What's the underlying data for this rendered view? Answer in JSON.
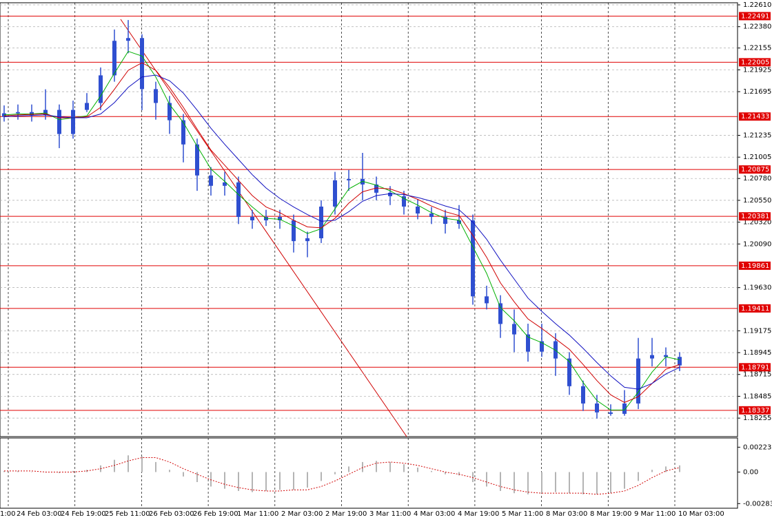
{
  "chart_data": {
    "type": "candlestick",
    "color": "#2f4fd0",
    "open": [
      1.2143,
      1.21467,
      1.2148,
      1.21445,
      1.21503,
      1.21249,
      1.21503,
      1.21576,
      1.21867,
      1.22231,
      1.2226,
      1.21722,
      1.21576,
      1.21394,
      1.21139,
      1.20812,
      1.20703,
      1.20739,
      1.20375,
      1.20339,
      1.20375,
      1.20339,
      1.2012,
      1.2015,
      1.20484,
      1.20761,
      1.20775,
      1.20717,
      1.2063,
      1.20593,
      1.20484,
      1.20411,
      1.20375,
      1.20302,
      1.20339,
      1.19538,
      1.19465,
      1.19247,
      1.19137,
      1.18955,
      1.19065,
      1.18883,
      1.18591,
      1.18409,
      1.18315,
      1.183,
      1.18409,
      1.18883,
      1.18919,
      1.189
    ],
    "high": [
      1.2155,
      1.2156,
      1.2156,
      1.2172,
      1.2156,
      1.216,
      1.2168,
      1.2195,
      1.2235,
      1.2245,
      1.223,
      1.218,
      1.2165,
      1.2146,
      1.212,
      1.209,
      1.2085,
      1.208,
      1.2045,
      1.2045,
      1.2045,
      1.204,
      1.2022,
      1.2055,
      1.2085,
      1.2087,
      1.2105,
      1.208,
      1.207,
      1.2065,
      1.2056,
      1.2048,
      1.2045,
      1.205,
      1.204,
      1.1965,
      1.1955,
      1.194,
      1.1925,
      1.1925,
      1.1915,
      1.1895,
      1.1865,
      1.185,
      1.184,
      1.1855,
      1.191,
      1.191,
      1.19,
      1.1895
    ],
    "low": [
      1.2138,
      1.214,
      1.2138,
      1.214,
      1.211,
      1.212,
      1.2148,
      1.215,
      1.218,
      1.221,
      1.215,
      1.214,
      1.2125,
      1.2095,
      1.2065,
      1.206,
      1.206,
      1.203,
      1.2025,
      1.2028,
      1.2025,
      1.2,
      1.1995,
      1.201,
      1.204,
      1.2065,
      1.2055,
      1.2055,
      1.205,
      1.204,
      1.2035,
      1.203,
      1.202,
      1.2025,
      1.1945,
      1.194,
      1.191,
      1.1895,
      1.1885,
      1.189,
      1.187,
      1.185,
      1.1833,
      1.1825,
      1.1828,
      1.1828,
      1.1835,
      1.188,
      1.188,
      1.1875
    ],
    "close": [
      1.21467,
      1.2148,
      1.21445,
      1.21503,
      1.21249,
      1.21503,
      1.21576,
      1.21867,
      1.22231,
      1.2226,
      1.21722,
      1.21576,
      1.21394,
      1.21139,
      1.20812,
      1.20703,
      1.20739,
      1.20375,
      1.20339,
      1.20375,
      1.20339,
      1.2012,
      1.2015,
      1.20484,
      1.20761,
      1.20775,
      1.20717,
      1.2063,
      1.20593,
      1.20484,
      1.20411,
      1.20375,
      1.20302,
      1.20339,
      1.19538,
      1.19465,
      1.19247,
      1.19137,
      1.18955,
      1.19065,
      1.18883,
      1.18591,
      1.18409,
      1.18315,
      1.183,
      1.18409,
      1.18883,
      1.18919,
      1.189,
      1.1881
    ],
    "moving_averages": [
      {
        "color": "#00b000",
        "values": [
          1.2145,
          1.2146,
          1.2146,
          1.2147,
          1.214,
          1.2142,
          1.2144,
          1.2165,
          1.2189,
          1.2212,
          1.2207,
          1.2185,
          1.2156,
          1.2137,
          1.2112,
          1.2088,
          1.2075,
          1.2061,
          1.2048,
          1.2036,
          1.2035,
          1.2028,
          1.202,
          1.2025,
          1.2046,
          1.2067,
          1.2075,
          1.2071,
          1.2065,
          1.2057,
          1.205,
          1.2042,
          1.2036,
          1.2034,
          1.2006,
          1.1978,
          1.1942,
          1.1928,
          1.1911,
          1.1905,
          1.1897,
          1.1885,
          1.1863,
          1.1844,
          1.1834,
          1.1834,
          1.1853,
          1.1874,
          1.189,
          1.1887
        ]
      },
      {
        "color": "#d00000",
        "values": [
          1.2144,
          1.2145,
          1.21455,
          1.2146,
          1.2142,
          1.2142,
          1.2143,
          1.2153,
          1.2172,
          1.2192,
          1.22,
          1.2192,
          1.2174,
          1.2153,
          1.213,
          1.2108,
          1.2092,
          1.2076,
          1.206,
          1.2048,
          1.2042,
          1.2034,
          1.2027,
          1.2026,
          1.2036,
          1.2052,
          1.2064,
          1.2068,
          1.2067,
          1.2062,
          1.2056,
          1.2049,
          1.2043,
          1.2039,
          1.2018,
          1.1995,
          1.1968,
          1.1948,
          1.193,
          1.192,
          1.1909,
          1.1898,
          1.1882,
          1.1865,
          1.185,
          1.1842,
          1.1848,
          1.1862,
          1.1877,
          1.1882
        ]
      },
      {
        "color": "#1010c0",
        "values": [
          1.2143,
          1.2144,
          1.21445,
          1.2145,
          1.2143,
          1.2142,
          1.2142,
          1.2146,
          1.2158,
          1.2174,
          1.2185,
          1.2187,
          1.2181,
          1.2168,
          1.215,
          1.2131,
          1.2114,
          1.2098,
          1.2082,
          1.2068,
          1.2057,
          1.2048,
          1.204,
          1.2033,
          1.2034,
          1.2043,
          1.2054,
          1.206,
          1.2062,
          1.2061,
          1.2058,
          1.2054,
          1.2049,
          1.2045,
          1.2032,
          1.2014,
          1.1992,
          1.1972,
          1.1952,
          1.1938,
          1.1925,
          1.1913,
          1.1899,
          1.1884,
          1.187,
          1.1858,
          1.1856,
          1.1862,
          1.1872,
          1.1879
        ]
      }
    ],
    "levels": {
      "color": "#e00000",
      "values": [
        1.22491,
        1.22005,
        1.21433,
        1.20875,
        1.20381,
        1.19861,
        1.19411,
        1.18791,
        1.18337
      ]
    },
    "ylim": [
      1.1806,
      1.22632
    ],
    "yticks": [
      {
        "value": 1.2261,
        "label": "1.22610"
      },
      {
        "value": 1.2238,
        "label": "1.22380"
      },
      1.22155,
      1.21925,
      1.21695,
      1.21235,
      {
        "value": 1.21005,
        "label": "1.21005"
      },
      {
        "value": 1.2078,
        "label": "1.20780"
      },
      {
        "value": 1.2055,
        "label": "1.20550"
      },
      {
        "value": 1.2032,
        "label": "1.20320"
      },
      {
        "value": 1.2009,
        "label": "1.20090"
      },
      {
        "value": 1.1963,
        "label": "1.19630"
      },
      1.19175,
      1.18945,
      1.18715,
      1.18485,
      1.18255
    ],
    "grid": true,
    "x_labels": [
      "1:00",
      "24 Feb 03:00",
      "24 Feb 19:00",
      "25 Feb 11:00",
      "26 Feb 03:00",
      "26 Feb 19:00",
      "1 Mar 11:00",
      "2 Mar 03:00",
      "2 Mar 19:00",
      "3 Mar 11:00",
      "4 Mar 03:00",
      "4 Mar 19:00",
      "5 Mar 11:00",
      "8 Mar 03:00",
      "8 Mar 19:00",
      "9 Mar 11:00",
      "10 Mar 03:00"
    ],
    "oscillator": {
      "histogram_color": "#b4b4b4",
      "signal_color": "#d00000",
      "histogram": [
        0.0001,
        0.0001,
        0.0,
        0.0,
        -0.0001,
        0.0001,
        0.0002,
        0.0006,
        0.0011,
        0.0015,
        0.0014,
        0.0009,
        0.0002,
        -0.0004,
        -0.0009,
        -0.0013,
        -0.0015,
        -0.0017,
        -0.0018,
        -0.0017,
        -0.0016,
        -0.0016,
        -0.0014,
        -0.0008,
        -0.0002,
        0.0005,
        0.0009,
        0.001,
        0.0009,
        0.0007,
        0.0004,
        0.0001,
        -0.0002,
        -0.0003,
        -0.0009,
        -0.0013,
        -0.0017,
        -0.0019,
        -0.002,
        -0.0019,
        -0.0018,
        -0.0019,
        -0.002,
        -0.002,
        -0.0019,
        -0.0015,
        -0.0008,
        0.0002,
        0.0005,
        0.0006
      ],
      "signal": [
        0.0001,
        0.0001,
        0.0001,
        0.0,
        0.0,
        0.0,
        0.0001,
        0.0003,
        0.0006,
        0.001,
        0.0013,
        0.0013,
        0.0009,
        0.0003,
        -0.0002,
        -0.0007,
        -0.0011,
        -0.0014,
        -0.0016,
        -0.0017,
        -0.0017,
        -0.0016,
        -0.0016,
        -0.0013,
        -0.0008,
        -0.0002,
        0.0004,
        0.0008,
        0.0009,
        0.0008,
        0.0006,
        0.0003,
        0.0,
        -0.0002,
        -0.0005,
        -0.0009,
        -0.0013,
        -0.0016,
        -0.0018,
        -0.0019,
        -0.0019,
        -0.0019,
        -0.0019,
        -0.002,
        -0.0019,
        -0.0017,
        -0.0012,
        -0.0005,
        0.0001,
        0.0004
      ],
      "ylim": [
        -0.00325,
        0.00306
      ],
      "yticks": [
        0.002233,
        {
          "value": 0,
          "label": "0.00"
        },
        -0.002834
      ]
    }
  }
}
